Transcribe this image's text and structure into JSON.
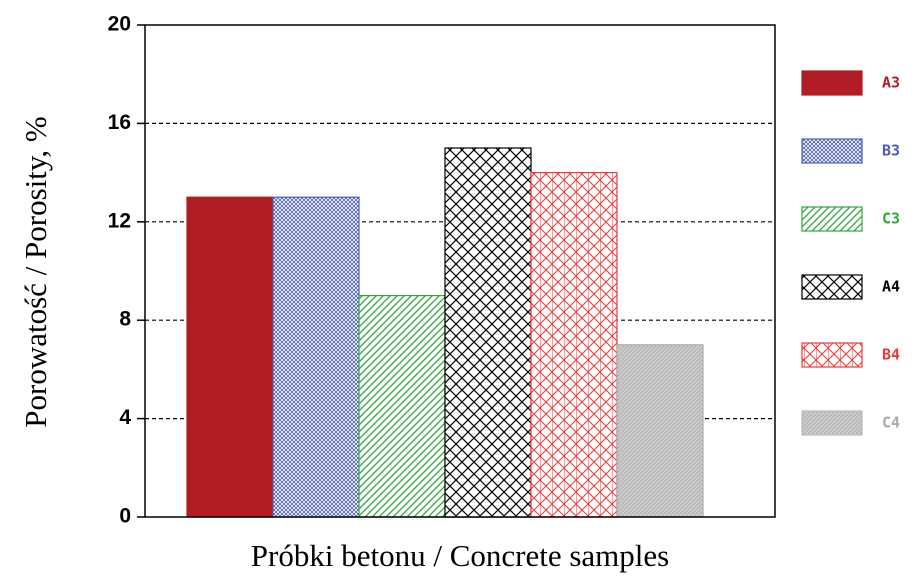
{
  "chart_data": {
    "type": "bar",
    "xlabel": "Próbki betonu / Concrete samples",
    "ylabel": "Porowatość / Porosity, %",
    "categories": [
      null
    ],
    "series": [
      {
        "name": "A3",
        "color": "#b01c24",
        "pattern": "solid",
        "values": [
          13
        ]
      },
      {
        "name": "B3",
        "color": "#4a5db0",
        "pattern": "fine-crosshatch",
        "values": [
          13
        ]
      },
      {
        "name": "C3",
        "color": "#2fa83a",
        "pattern": "diagonal",
        "values": [
          9
        ]
      },
      {
        "name": "A4",
        "color": "#000000",
        "pattern": "crosshatch",
        "values": [
          15
        ]
      },
      {
        "name": "B4",
        "color": "#e83a3a",
        "pattern": "wide-crosshatch",
        "values": [
          14
        ]
      },
      {
        "name": "C4",
        "color": "#b8b8b8",
        "pattern": "light",
        "values": [
          7
        ]
      }
    ],
    "ylim": [
      0,
      20
    ],
    "yticks": [
      0,
      4,
      8,
      12,
      16,
      20
    ],
    "grid": true,
    "legend": "right"
  }
}
